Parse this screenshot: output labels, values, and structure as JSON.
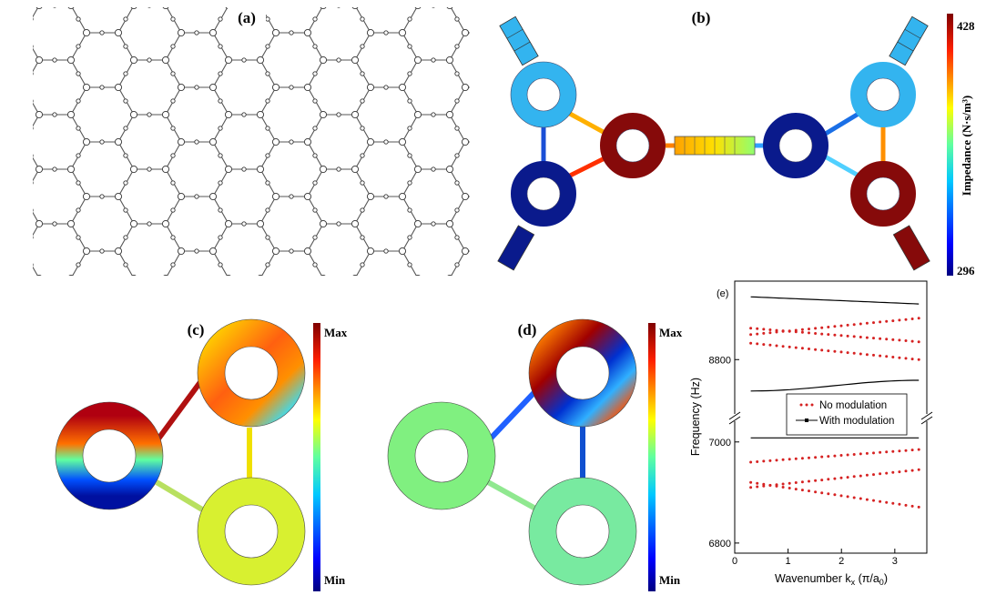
{
  "panels": {
    "a": {
      "label": "(a)"
    },
    "b": {
      "label": "(b)",
      "colorbar": {
        "max_label": "428",
        "min_label": "296",
        "title": "Impedance (N·s/m³)"
      }
    },
    "c": {
      "label": "(c)",
      "colorbar": {
        "max_label": "Max",
        "min_label": "Min"
      }
    },
    "d": {
      "label": "(d)",
      "colorbar": {
        "max_label": "Max",
        "min_label": "Min"
      }
    }
  },
  "colors": {
    "light_blue": "#33b4ef",
    "dark_blue": "#0a1a8c",
    "dark_red": "#860a0a",
    "series_no_mod": "#d62222",
    "series_with_mod": "#000000"
  },
  "chart_data": {
    "type": "scatter",
    "title": "(e)",
    "xlabel": "Wavenumber k_x (π/a₀)",
    "xlabel_main": "Wavenumber k",
    "xlabel_sub": "x",
    "xlabel_paren": " (π/a",
    "xlabel_sub2": "0",
    "xlabel_close": ")",
    "ylabel": "Frequency (Hz)",
    "xlim": [
      0,
      3.6
    ],
    "x_ticks": [
      "0",
      "1",
      "2",
      "3"
    ],
    "y_ticks": [
      "6800",
      "7000",
      "8800"
    ],
    "axis_break": true,
    "legend": {
      "no_mod": "No modulation",
      "with_mod": "With modulation"
    },
    "series": [
      {
        "name": "No modulation",
        "style": "dots",
        "bands": [
          {
            "x": [
              0.3,
              3.45
            ],
            "y": [
              8823,
              8800
            ]
          },
          {
            "x": [
              0.3,
              3.45
            ],
            "y": [
              8835,
              8858
            ]
          },
          {
            "x": [
              0.3,
              3.45
            ],
            "y": [
              8844,
              8825
            ]
          },
          {
            "x": [
              0.3,
              3.45
            ],
            "y": [
              6920,
              6871
            ]
          },
          {
            "x": [
              0.3,
              3.45
            ],
            "y": [
              6960,
              6985
            ]
          },
          {
            "x": [
              0.3,
              3.45
            ],
            "y": [
              6910,
              6945
            ]
          }
        ]
      },
      {
        "name": "With modulation",
        "style": "line",
        "bands": [
          {
            "x": [
              0.3,
              3.45
            ],
            "y": [
              8888,
              8878
            ]
          },
          {
            "x": [
              0.3,
              3.45
            ],
            "y": [
              8756,
              8771
            ]
          },
          {
            "x": [
              0.3,
              3.45
            ],
            "y": [
              7008,
              7008
            ]
          }
        ]
      }
    ]
  }
}
